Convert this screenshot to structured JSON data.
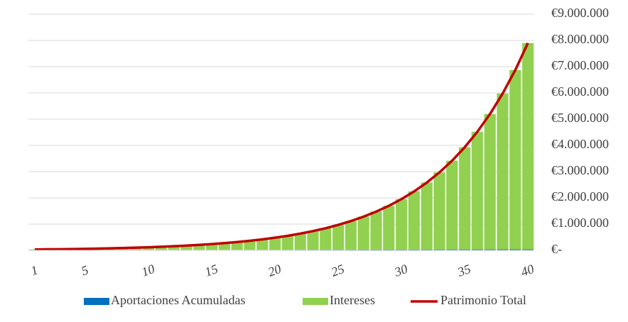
{
  "chart_data": {
    "type": "bar",
    "stacked": true,
    "categories": [
      1,
      null,
      null,
      null,
      5,
      null,
      null,
      null,
      null,
      10,
      null,
      null,
      null,
      null,
      15,
      null,
      null,
      null,
      null,
      20,
      null,
      null,
      null,
      null,
      25,
      null,
      null,
      null,
      null,
      30,
      null,
      null,
      null,
      null,
      35,
      null,
      null,
      null,
      null,
      40
    ],
    "series": [
      {
        "name": "Aportaciones Acumuladas",
        "type": "bar",
        "color": "#0070c0",
        "values": [
          1200,
          2400,
          3600,
          4800,
          6000,
          7200,
          8400,
          9600,
          10800,
          12000,
          13200,
          14400,
          15600,
          16800,
          18000,
          19200,
          20400,
          21600,
          22800,
          24000,
          25200,
          26400,
          27600,
          28800,
          30000,
          31200,
          32400,
          33600,
          34800,
          36000,
          37200,
          38400,
          39600,
          40800,
          42000,
          43200,
          44400,
          45600,
          46800,
          48000
        ]
      },
      {
        "name": "Intereses",
        "type": "bar",
        "color": "#92d050",
        "values": [
          32800,
          36600,
          41400,
          47200,
          53000,
          60800,
          69600,
          80400,
          93200,
          107000,
          123800,
          143600,
          165400,
          192200,
          222000,
          256800,
          296600,
          343400,
          397200,
          459000,
          529800,
          611600,
          706400,
          815200,
          941000,
          1085800,
          1251600,
          1443400,
          1663200,
          1917000,
          2208800,
          2544600,
          2930400,
          3374200,
          3886000,
          4473800,
          5149600,
          5928400,
          6823200,
          7852000
        ]
      },
      {
        "name": "Patrimonio Total",
        "type": "line",
        "color": "#c00000",
        "values": [
          34000,
          39000,
          45000,
          52000,
          59000,
          68000,
          78000,
          90000,
          104000,
          119000,
          137000,
          158000,
          181000,
          209000,
          240000,
          276000,
          317000,
          365000,
          420000,
          483000,
          555000,
          638000,
          734000,
          844000,
          971000,
          1117000,
          1284000,
          1477000,
          1698000,
          1953000,
          2246000,
          2583000,
          2970000,
          3415000,
          3928000,
          4517000,
          5194000,
          5974000,
          6870000,
          7900000
        ]
      }
    ],
    "ylim": [
      0,
      9000000
    ],
    "yticks": [
      {
        "value": 0,
        "label": "€-"
      },
      {
        "value": 1000000,
        "label": "€1.000.000"
      },
      {
        "value": 2000000,
        "label": "€2.000.000"
      },
      {
        "value": 3000000,
        "label": "€3.000.000"
      },
      {
        "value": 4000000,
        "label": "€4.000.000"
      },
      {
        "value": 5000000,
        "label": "€5.000.000"
      },
      {
        "value": 6000000,
        "label": "€6.000.000"
      },
      {
        "value": 7000000,
        "label": "€7.000.000"
      },
      {
        "value": 8000000,
        "label": "€8.000.000"
      },
      {
        "value": 9000000,
        "label": "€9.000.000"
      }
    ],
    "grid": true,
    "legend": "bottom"
  }
}
